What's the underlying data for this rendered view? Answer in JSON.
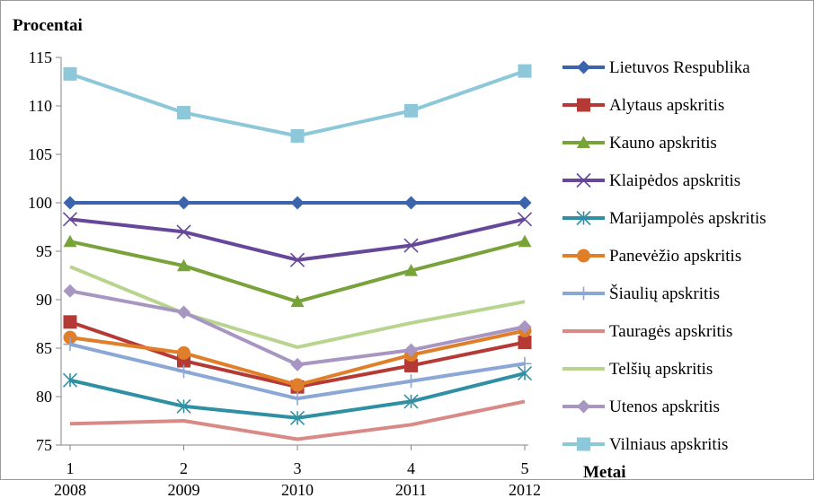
{
  "chart_data": {
    "type": "line",
    "ylabel": "Procentai",
    "xlabel": "Metai",
    "ylim": [
      75,
      115
    ],
    "yticks": [
      75,
      80,
      85,
      90,
      95,
      100,
      105,
      110,
      115
    ],
    "x": [
      1,
      2,
      3,
      4,
      5
    ],
    "x_year_labels": [
      "2008",
      "2009",
      "2010",
      "2011",
      "2012"
    ],
    "grid": false,
    "legend_position": "right",
    "series": [
      {
        "name": "Lietuvos Respublika",
        "color": "#3b64ad",
        "marker": "diamond",
        "values": [
          100,
          100,
          100,
          100,
          100
        ]
      },
      {
        "name": "Alytaus apskritis",
        "color": "#b53a36",
        "marker": "square",
        "values": [
          87.7,
          83.7,
          81.0,
          83.2,
          85.6
        ]
      },
      {
        "name": "Kauno apskritis",
        "color": "#78a23a",
        "marker": "triangle",
        "values": [
          96.0,
          93.5,
          89.8,
          93.0,
          96.0
        ]
      },
      {
        "name": "Klaipėdos apskritis",
        "color": "#66479a",
        "marker": "x",
        "values": [
          98.3,
          97.0,
          94.1,
          95.6,
          98.3
        ]
      },
      {
        "name": "Marijampolės apskritis",
        "color": "#2f8fa3",
        "marker": "star",
        "values": [
          81.7,
          79.0,
          77.8,
          79.5,
          82.4
        ]
      },
      {
        "name": "Panevėžio apskritis",
        "color": "#e07f2a",
        "marker": "circle",
        "values": [
          86.1,
          84.5,
          81.2,
          84.3,
          86.8
        ]
      },
      {
        "name": "Šiaulių apskritis",
        "color": "#8ba7d6",
        "marker": "plus",
        "values": [
          85.4,
          82.6,
          79.8,
          81.6,
          83.4
        ]
      },
      {
        "name": "Tauragės apskritis",
        "color": "#d98a86",
        "marker": "none",
        "values": [
          77.2,
          77.5,
          75.6,
          77.1,
          79.5
        ]
      },
      {
        "name": "Telšių apskritis",
        "color": "#b9d48e",
        "marker": "none",
        "values": [
          93.4,
          88.6,
          85.1,
          87.6,
          89.8
        ]
      },
      {
        "name": "Utenos apskritis",
        "color": "#a896c2",
        "marker": "diamond",
        "values": [
          90.9,
          88.7,
          83.3,
          84.8,
          87.2
        ]
      },
      {
        "name": "Vilniaus apskritis",
        "color": "#8cc8da",
        "marker": "square",
        "values": [
          113.3,
          109.3,
          106.9,
          109.5,
          113.6
        ]
      }
    ]
  }
}
